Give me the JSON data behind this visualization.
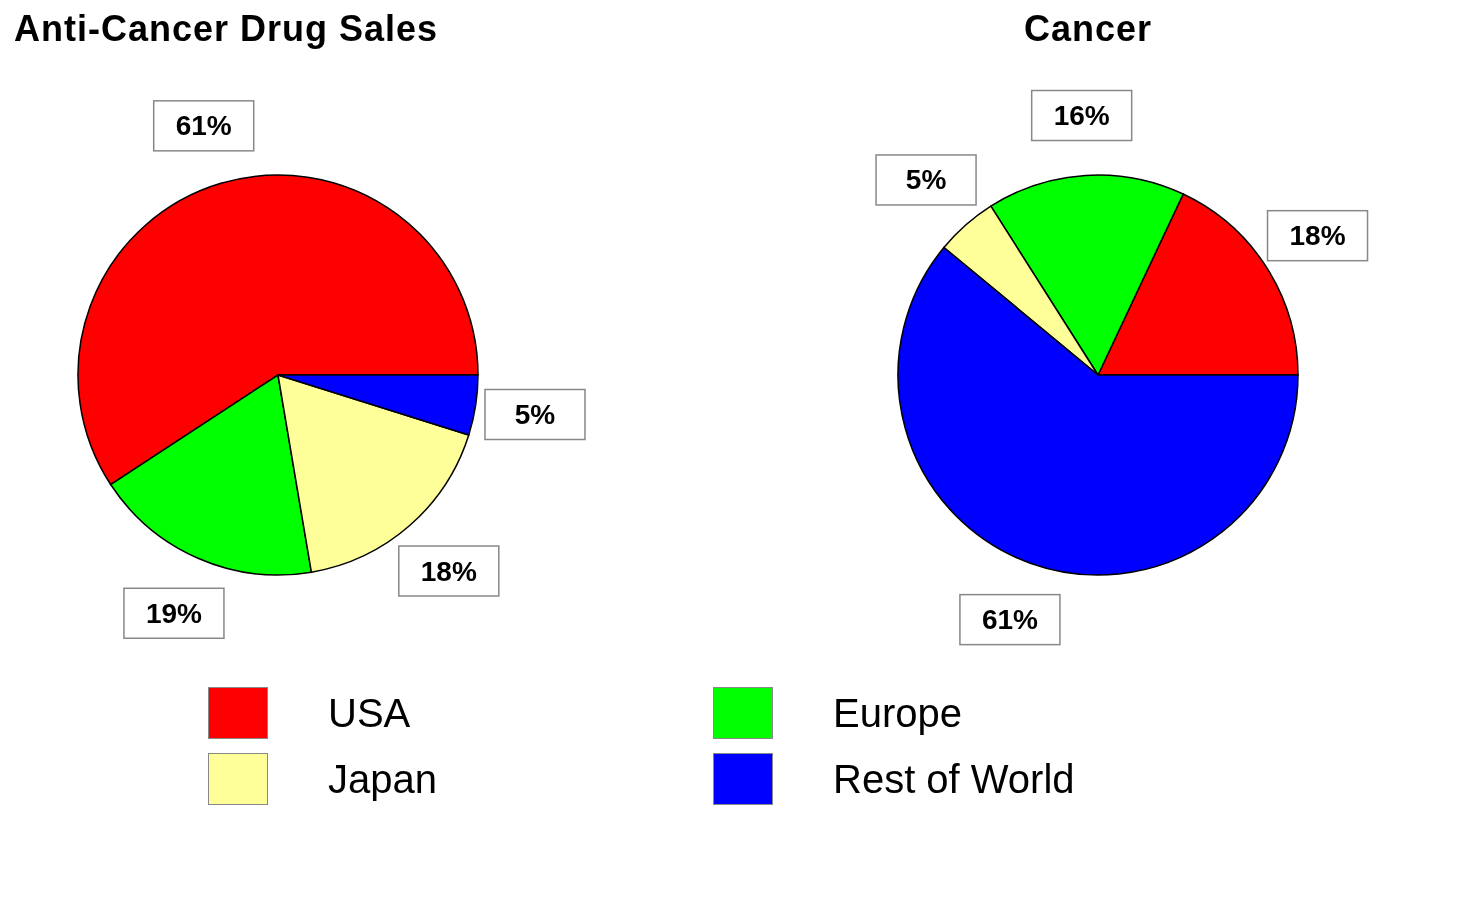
{
  "chart_data": [
    {
      "type": "pie",
      "title": "Anti-Cancer Drug Sales",
      "categories": [
        "USA",
        "Europe",
        "Japan",
        "Rest of World"
      ],
      "values": [
        61,
        19,
        18,
        5
      ],
      "value_labels": [
        "61%",
        "19%",
        "18%",
        "5%"
      ],
      "colors": [
        "#ff0000",
        "#00ff00",
        "#ffff99",
        "#0000ff"
      ],
      "legend": "bottom"
    },
    {
      "type": "pie",
      "title": "Cancer",
      "categories": [
        null,
        null,
        null,
        null
      ],
      "values": [
        18,
        16,
        5,
        61
      ],
      "value_labels": [
        "18%",
        "16%",
        "5%",
        "61%"
      ],
      "colors": [
        "#ff0000",
        "#00ff00",
        "#ffff99",
        "#0000ff"
      ]
    }
  ]
}
